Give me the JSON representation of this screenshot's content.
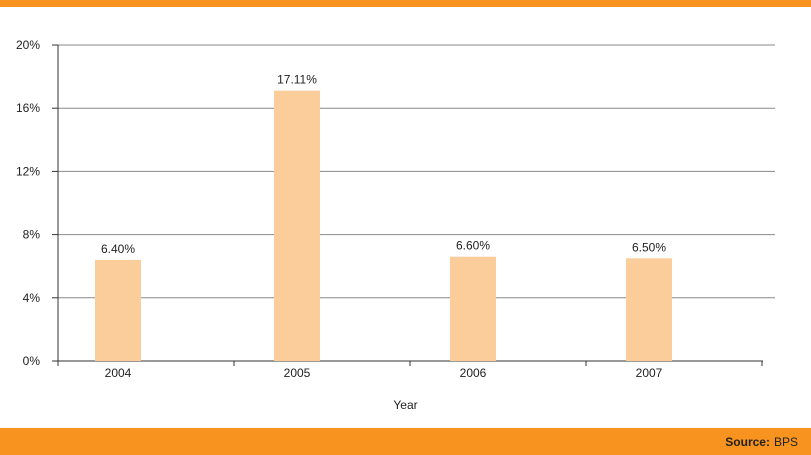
{
  "chart_data": {
    "type": "bar",
    "title": "",
    "xlabel": "Year",
    "ylabel": "",
    "categories": [
      "2004",
      "2005",
      "2006",
      "2007"
    ],
    "values": [
      6.4,
      17.11,
      6.6,
      6.5
    ],
    "value_labels": [
      "6.40%",
      "17.11%",
      "6.60%",
      "6.50%"
    ],
    "yticks": [
      "0%",
      "4%",
      "8%",
      "12%",
      "16%",
      "20%"
    ],
    "ylim": [
      0,
      20
    ],
    "grid": true,
    "bar_color": "#fbcd9b"
  },
  "footer": {
    "source_label": "Source:",
    "source_value": "BPS"
  },
  "colors": {
    "accent": "#f7931e"
  }
}
